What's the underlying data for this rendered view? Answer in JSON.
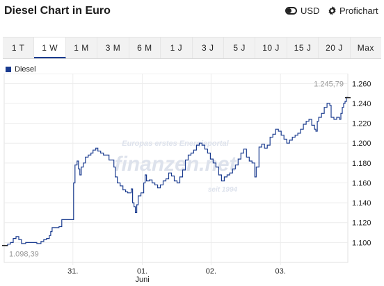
{
  "header": {
    "title": "Diesel Chart in Euro",
    "currency_label": "USD",
    "profi_label": "Profichart"
  },
  "tabs": [
    {
      "label": "1 T",
      "active": false
    },
    {
      "label": "1 W",
      "active": true
    },
    {
      "label": "1 M",
      "active": false
    },
    {
      "label": "3 M",
      "active": false
    },
    {
      "label": "6 M",
      "active": false
    },
    {
      "label": "1 J",
      "active": false
    },
    {
      "label": "3 J",
      "active": false
    },
    {
      "label": "5 J",
      "active": false
    },
    {
      "label": "10 J",
      "active": false
    },
    {
      "label": "15 J",
      "active": false
    },
    {
      "label": "20 J",
      "active": false
    },
    {
      "label": "Max",
      "active": false
    }
  ],
  "legend": {
    "label": "Diesel",
    "color": "#1a3b8f"
  },
  "watermark": {
    "line1": "Europas erstes Energieportal",
    "line2": "finanzen.net",
    "line3": "seit 1994"
  },
  "chart_data": {
    "type": "line",
    "series_name": "Diesel",
    "color": "#1a3b8f",
    "ylim": [
      1080,
      1270
    ],
    "y_ticks": [
      1100,
      1120,
      1140,
      1160,
      1180,
      1200,
      1220,
      1240,
      1260
    ],
    "y_tick_labels": [
      "1.100",
      "1.120",
      "1.140",
      "1.160",
      "1.180",
      "1.200",
      "1.220",
      "1.240",
      "1.260"
    ],
    "x_ticks": [
      {
        "label": "31.",
        "sub": "",
        "t": 104
      },
      {
        "label": "01.",
        "sub": "Juni",
        "t": 204
      },
      {
        "label": "02.",
        "sub": "",
        "t": 303
      },
      {
        "label": "03.",
        "sub": "",
        "t": 403
      }
    ],
    "x_range": [
      5,
      500
    ],
    "first_value_label": "1.098,39",
    "last_value_label": "1.245,79",
    "points": [
      [
        6,
        1097
      ],
      [
        10,
        1098.4
      ],
      [
        14,
        1100
      ],
      [
        18,
        1104
      ],
      [
        22,
        1106
      ],
      [
        26,
        1103
      ],
      [
        30,
        1099
      ],
      [
        36,
        1100
      ],
      [
        44,
        1100
      ],
      [
        52,
        1099
      ],
      [
        58,
        1101
      ],
      [
        62,
        1103
      ],
      [
        66,
        1104
      ],
      [
        70,
        1107
      ],
      [
        72,
        1111
      ],
      [
        74,
        1115
      ],
      [
        78,
        1115
      ],
      [
        84,
        1116
      ],
      [
        88,
        1123
      ],
      [
        96,
        1123
      ],
      [
        104,
        1123
      ],
      [
        105,
        1160
      ],
      [
        107,
        1178
      ],
      [
        110,
        1182
      ],
      [
        112,
        1174
      ],
      [
        114,
        1168
      ],
      [
        116,
        1176
      ],
      [
        119,
        1180
      ],
      [
        122,
        1186
      ],
      [
        126,
        1188
      ],
      [
        130,
        1190
      ],
      [
        133,
        1193
      ],
      [
        137,
        1195
      ],
      [
        140,
        1192
      ],
      [
        144,
        1190
      ],
      [
        148,
        1188
      ],
      [
        152,
        1188
      ],
      [
        156,
        1183
      ],
      [
        160,
        1183
      ],
      [
        163,
        1176
      ],
      [
        165,
        1166
      ],
      [
        168,
        1160
      ],
      [
        172,
        1157
      ],
      [
        176,
        1153
      ],
      [
        180,
        1151
      ],
      [
        183,
        1150
      ],
      [
        186,
        1150
      ],
      [
        188,
        1154
      ],
      [
        190,
        1140
      ],
      [
        192,
        1136
      ],
      [
        194,
        1130
      ],
      [
        196,
        1138
      ],
      [
        198,
        1147
      ],
      [
        202,
        1150
      ],
      [
        206,
        1160
      ],
      [
        208,
        1168
      ],
      [
        210,
        1162
      ],
      [
        214,
        1163
      ],
      [
        218,
        1160
      ],
      [
        222,
        1158
      ],
      [
        226,
        1155
      ],
      [
        230,
        1158
      ],
      [
        234,
        1162
      ],
      [
        238,
        1164
      ],
      [
        242,
        1170
      ],
      [
        246,
        1167
      ],
      [
        250,
        1162
      ],
      [
        254,
        1160
      ],
      [
        258,
        1166
      ],
      [
        262,
        1173
      ],
      [
        266,
        1183
      ],
      [
        270,
        1188
      ],
      [
        274,
        1190
      ],
      [
        278,
        1193
      ],
      [
        282,
        1198
      ],
      [
        286,
        1200
      ],
      [
        290,
        1198
      ],
      [
        294,
        1194
      ],
      [
        298,
        1190
      ],
      [
        302,
        1184
      ],
      [
        306,
        1180
      ],
      [
        310,
        1176
      ],
      [
        314,
        1168
      ],
      [
        318,
        1162
      ],
      [
        322,
        1166
      ],
      [
        326,
        1168
      ],
      [
        330,
        1170
      ],
      [
        334,
        1174
      ],
      [
        338,
        1178
      ],
      [
        342,
        1184
      ],
      [
        346,
        1190
      ],
      [
        350,
        1194
      ],
      [
        354,
        1186
      ],
      [
        358,
        1182
      ],
      [
        362,
        1180
      ],
      [
        366,
        1166
      ],
      [
        368,
        1176
      ],
      [
        372,
        1196
      ],
      [
        376,
        1199
      ],
      [
        380,
        1195
      ],
      [
        384,
        1198
      ],
      [
        388,
        1206
      ],
      [
        392,
        1209
      ],
      [
        396,
        1214
      ],
      [
        400,
        1212
      ],
      [
        404,
        1208
      ],
      [
        408,
        1204
      ],
      [
        412,
        1200
      ],
      [
        416,
        1203
      ],
      [
        420,
        1206
      ],
      [
        424,
        1208
      ],
      [
        428,
        1210
      ],
      [
        432,
        1214
      ],
      [
        436,
        1219
      ],
      [
        440,
        1222
      ],
      [
        444,
        1224
      ],
      [
        448,
        1218
      ],
      [
        452,
        1214
      ],
      [
        454,
        1212
      ],
      [
        456,
        1222
      ],
      [
        458,
        1226
      ],
      [
        462,
        1230
      ],
      [
        466,
        1236
      ],
      [
        470,
        1240
      ],
      [
        474,
        1238
      ],
      [
        476,
        1226
      ],
      [
        480,
        1224
      ],
      [
        484,
        1226
      ],
      [
        488,
        1224
      ],
      [
        490,
        1230
      ],
      [
        492,
        1236
      ],
      [
        494,
        1240
      ],
      [
        496,
        1242
      ],
      [
        498,
        1246
      ],
      [
        500,
        1245.79
      ]
    ]
  }
}
